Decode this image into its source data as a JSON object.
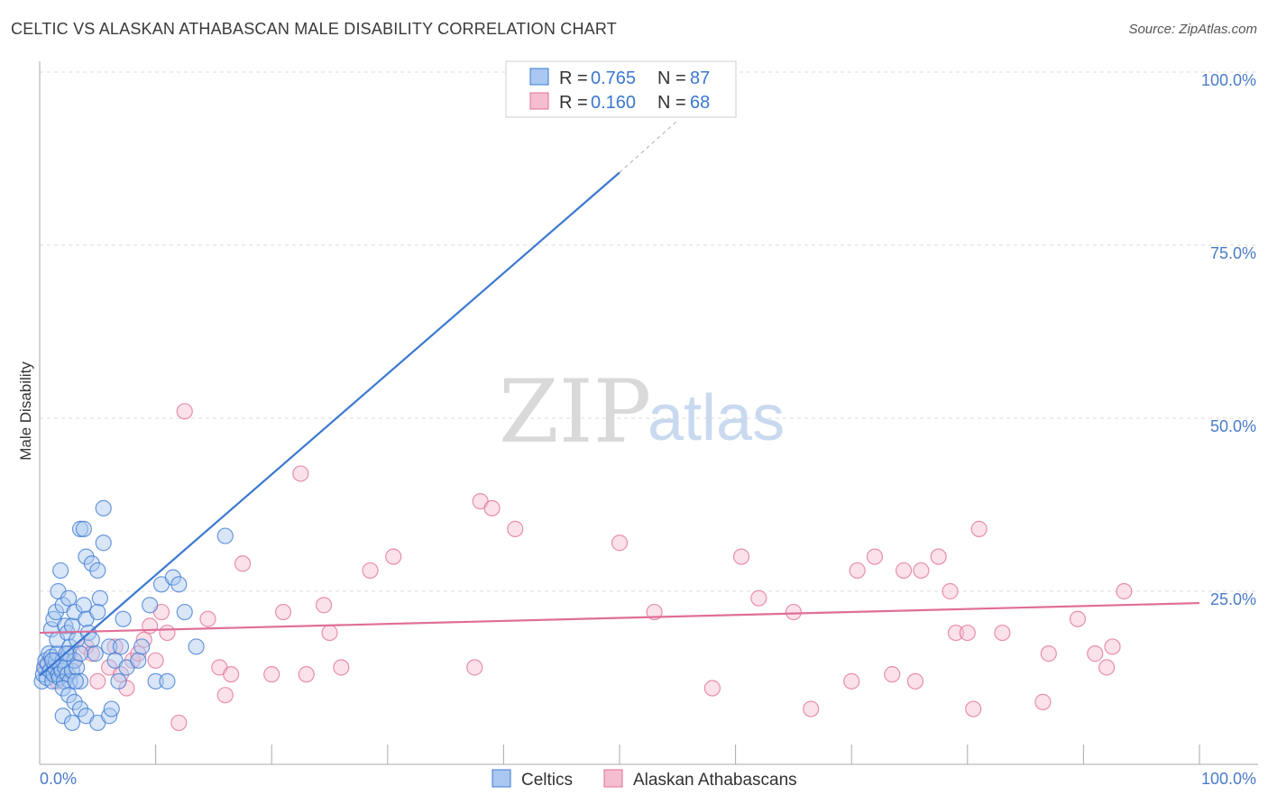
{
  "title": "CELTIC VS ALASKAN ATHABASCAN MALE DISABILITY CORRELATION CHART",
  "source": "Source: ZipAtlas.com",
  "watermark": {
    "zip": "ZIP",
    "atlas": "atlas"
  },
  "colors": {
    "celtic": "#3b78d0",
    "celtic_fill": "#a9c7f0",
    "alaskan": "#e06e98",
    "alaskan_fill": "#f5bdd0",
    "grid": "#dcdcdc",
    "tick": "#4a7bc8"
  },
  "legend": {
    "rows": [
      {
        "r_label": "R =",
        "r_value": "0.765",
        "n_label": "N =",
        "n_value": "87"
      },
      {
        "r_label": "R =",
        "r_value": "0.160",
        "n_label": "N =",
        "n_value": "68"
      }
    ]
  },
  "bottom_legend": [
    "Celtics",
    "Alaskan Athabascans"
  ],
  "chart_data": {
    "type": "scatter",
    "title": "CELTIC VS ALASKAN ATHABASCAN MALE DISABILITY CORRELATION CHART",
    "xlabel": "",
    "ylabel": "Male Disability",
    "xlim": [
      0,
      100
    ],
    "ylim": [
      0,
      100
    ],
    "x_tick_labels": [
      "0.0%",
      "100.0%"
    ],
    "y_ticks": [
      25,
      50,
      75,
      100
    ],
    "y_tick_labels": [
      "25.0%",
      "50.0%",
      "75.0%",
      "100.0%"
    ],
    "grid": true,
    "series": [
      {
        "name": "Celtics",
        "R": 0.765,
        "N": 87,
        "trend": {
          "x0": 0,
          "y0": 12.8,
          "x1": 50,
          "y1": 85.5,
          "dashed_to_x": 55,
          "dashed_to_y": 93
        },
        "points": [
          [
            0.2,
            12
          ],
          [
            0.3,
            13
          ],
          [
            0.4,
            14
          ],
          [
            0.5,
            15
          ],
          [
            0.6,
            12.5
          ],
          [
            0.7,
            14.5
          ],
          [
            0.8,
            16
          ],
          [
            0.9,
            13.5
          ],
          [
            1.0,
            15.5
          ],
          [
            1.1,
            12
          ],
          [
            1.2,
            13
          ],
          [
            1.3,
            14
          ],
          [
            1.4,
            15
          ],
          [
            1.5,
            16
          ],
          [
            1.6,
            13
          ],
          [
            1.7,
            12.5
          ],
          [
            1.8,
            14
          ],
          [
            1.9,
            13.5
          ],
          [
            2.0,
            15
          ],
          [
            2.1,
            12
          ],
          [
            2.2,
            14
          ],
          [
            2.4,
            13
          ],
          [
            2.5,
            16
          ],
          [
            2.6,
            12
          ],
          [
            2.8,
            13.5
          ],
          [
            3.0,
            15
          ],
          [
            3.2,
            14
          ],
          [
            3.5,
            12
          ],
          [
            1.0,
            19.5
          ],
          [
            1.2,
            21
          ],
          [
            1.4,
            22
          ],
          [
            1.5,
            18
          ],
          [
            1.6,
            25
          ],
          [
            1.8,
            28
          ],
          [
            2.0,
            23
          ],
          [
            2.2,
            20
          ],
          [
            2.4,
            19
          ],
          [
            2.5,
            24
          ],
          [
            2.6,
            17
          ],
          [
            2.8,
            20
          ],
          [
            3.0,
            22
          ],
          [
            3.2,
            18
          ],
          [
            3.5,
            16
          ],
          [
            3.8,
            23
          ],
          [
            4.0,
            21
          ],
          [
            4.2,
            19
          ],
          [
            3.5,
            34
          ],
          [
            3.8,
            34
          ],
          [
            4.0,
            30
          ],
          [
            4.5,
            29
          ],
          [
            5.0,
            28
          ],
          [
            5.5,
            32
          ],
          [
            5.2,
            24
          ],
          [
            5.0,
            22
          ],
          [
            4.5,
            18
          ],
          [
            4.8,
            16
          ],
          [
            6.0,
            17
          ],
          [
            6.5,
            15
          ],
          [
            7.0,
            17
          ],
          [
            7.5,
            14
          ],
          [
            5.5,
            37
          ],
          [
            2.0,
            11
          ],
          [
            2.5,
            10
          ],
          [
            3.0,
            9
          ],
          [
            3.5,
            8
          ],
          [
            4.0,
            7
          ],
          [
            2.0,
            7
          ],
          [
            2.8,
            6
          ],
          [
            5.0,
            6
          ],
          [
            6.0,
            7
          ],
          [
            6.2,
            8
          ],
          [
            6.8,
            12
          ],
          [
            7.2,
            21
          ],
          [
            8.5,
            15
          ],
          [
            8.8,
            17
          ],
          [
            9.5,
            23
          ],
          [
            10.0,
            12
          ],
          [
            10.5,
            26
          ],
          [
            11.0,
            12
          ],
          [
            11.5,
            27
          ],
          [
            12.0,
            26
          ],
          [
            12.5,
            22
          ],
          [
            13.5,
            17
          ],
          [
            16.0,
            33
          ],
          [
            1.1,
            15
          ],
          [
            2.3,
            16
          ],
          [
            3.1,
            12
          ]
        ]
      },
      {
        "name": "Alaskan Athabascans",
        "R": 0.16,
        "N": 68,
        "trend": {
          "x0": 0,
          "y0": 19,
          "x1": 100,
          "y1": 23.3
        },
        "points": [
          [
            0.5,
            14
          ],
          [
            1.0,
            15
          ],
          [
            1.5,
            12
          ],
          [
            2.0,
            13
          ],
          [
            2.5,
            16
          ],
          [
            3.0,
            15
          ],
          [
            4.0,
            17
          ],
          [
            4.5,
            16
          ],
          [
            5.0,
            12
          ],
          [
            6.0,
            14
          ],
          [
            6.5,
            17
          ],
          [
            7.0,
            13
          ],
          [
            7.5,
            11
          ],
          [
            8.0,
            15
          ],
          [
            8.5,
            16
          ],
          [
            9.0,
            18
          ],
          [
            9.5,
            20
          ],
          [
            10.0,
            15
          ],
          [
            10.5,
            22
          ],
          [
            11.0,
            19
          ],
          [
            12.0,
            6
          ],
          [
            12.5,
            51
          ],
          [
            14.5,
            21
          ],
          [
            15.5,
            14
          ],
          [
            16.0,
            10
          ],
          [
            16.5,
            13
          ],
          [
            17.5,
            29
          ],
          [
            20.0,
            13
          ],
          [
            21.0,
            22
          ],
          [
            22.5,
            42
          ],
          [
            23.0,
            13
          ],
          [
            24.5,
            23
          ],
          [
            25.0,
            19
          ],
          [
            26.0,
            14
          ],
          [
            28.5,
            28
          ],
          [
            30.5,
            30
          ],
          [
            37.5,
            14
          ],
          [
            38.0,
            38
          ],
          [
            39.0,
            37
          ],
          [
            41.0,
            34
          ],
          [
            50.0,
            32
          ],
          [
            53.0,
            22
          ],
          [
            58.0,
            11
          ],
          [
            60.5,
            30
          ],
          [
            62.0,
            24
          ],
          [
            65.0,
            22
          ],
          [
            66.5,
            8
          ],
          [
            70.0,
            12
          ],
          [
            70.5,
            28
          ],
          [
            72.0,
            30
          ],
          [
            73.5,
            13
          ],
          [
            74.5,
            28
          ],
          [
            75.5,
            12
          ],
          [
            76.0,
            28
          ],
          [
            77.5,
            30
          ],
          [
            78.5,
            25
          ],
          [
            79.0,
            19
          ],
          [
            80.0,
            19
          ],
          [
            80.5,
            8
          ],
          [
            81.0,
            34
          ],
          [
            83.0,
            19
          ],
          [
            86.5,
            9
          ],
          [
            87.0,
            16
          ],
          [
            89.5,
            21
          ],
          [
            91.0,
            16
          ],
          [
            92.0,
            14
          ],
          [
            92.5,
            17
          ],
          [
            93.5,
            25
          ]
        ]
      }
    ]
  }
}
